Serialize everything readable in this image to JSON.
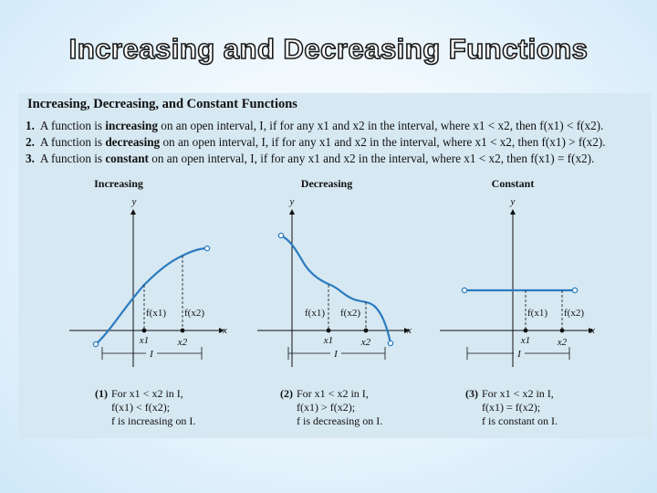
{
  "slide": {
    "title": "Increasing and Decreasing Functions"
  },
  "panel": {
    "heading": "Increasing, Decreasing, and Constant Functions",
    "rules": [
      {
        "num": "1.",
        "pre": "A function is ",
        "term": "increasing",
        "post": " on an open interval, I, if for any x1 and x2 in the interval, where x1 < x2, then f(x1) < f(x2)."
      },
      {
        "num": "2.",
        "pre": "A function is ",
        "term": "decreasing",
        "post": " on an open interval, I, if for any x1 and x2 in the interval, where x1 < x2, then f(x1) > f(x2)."
      },
      {
        "num": "3.",
        "pre": "A function is ",
        "term": "constant",
        "post": " on an open interval, I, if for any x1 and x2 in the interval, where x1 < x2, then f(x1) = f(x2)."
      }
    ]
  },
  "graphs": [
    {
      "title": "Increasing",
      "y_label": "y",
      "x_label": "x",
      "fx1": "f(x1)",
      "fx2": "f(x2)",
      "x1": "x1",
      "x2": "x2",
      "interval": "I",
      "caption": {
        "num": "(1)",
        "line1": "For x1 < x2 in I,",
        "line2": "f(x1) < f(x2);",
        "line3": "f is increasing on I."
      }
    },
    {
      "title": "Decreasing",
      "y_label": "y",
      "x_label": "x",
      "fx1": "f(x1)",
      "fx2": "f(x2)",
      "x1": "x1",
      "x2": "x2",
      "interval": "I",
      "caption": {
        "num": "(2)",
        "line1": "For x1 < x2 in I,",
        "line2": "f(x1) > f(x2);",
        "line3": "f is decreasing on I."
      }
    },
    {
      "title": "Constant",
      "y_label": "y",
      "x_label": "x",
      "fx1": "f(x1)",
      "fx2": "f(x2)",
      "x1": "x1",
      "x2": "x2",
      "interval": "I",
      "caption": {
        "num": "(3)",
        "line1": "For x1 < x2 in I,",
        "line2": "f(x1) = f(x2);",
        "line3": "f is constant on I."
      }
    }
  ],
  "colors": {
    "curve": "#2b7bbf",
    "panel_bg": "#d6e8f2",
    "text": "#111111"
  }
}
